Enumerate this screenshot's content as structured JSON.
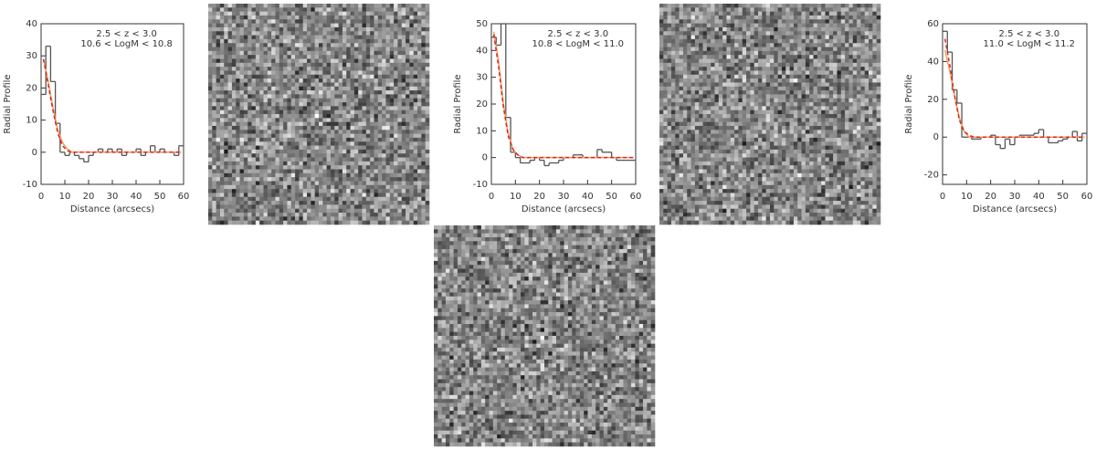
{
  "chart_data": [
    {
      "type": "line",
      "annotations": [
        "2.5 < z <  3.0",
        "10.6 < LogM < 10.8"
      ],
      "xlabel": "Distance (arcsecs)",
      "ylabel": "Radial Profile",
      "xlim": [
        0,
        60
      ],
      "xticks": [
        0,
        10,
        20,
        30,
        40,
        50,
        60
      ],
      "ylim": [
        -10,
        40
      ],
      "yticks": [
        -10,
        0,
        10,
        20,
        30,
        40
      ],
      "x": [
        1,
        3,
        5,
        7,
        9,
        11,
        13,
        15,
        17,
        19,
        21,
        23,
        25,
        27,
        29,
        31,
        33,
        35,
        37,
        39,
        41,
        43,
        45,
        47,
        49,
        51,
        53,
        55,
        57,
        59
      ],
      "series": [
        {
          "color": "#555555",
          "style": "step",
          "values": [
            18,
            33,
            22,
            9,
            0,
            -1,
            0,
            -1,
            -2,
            -3,
            -1,
            0,
            1,
            0,
            1,
            0,
            1,
            -1,
            0,
            0,
            1,
            -1,
            0,
            2,
            0,
            1,
            0,
            0,
            -1,
            2
          ]
        },
        {
          "color": "#f0a060",
          "style": "solid",
          "values": [
            29,
            22,
            14,
            7,
            3,
            1,
            0,
            0,
            0,
            0,
            0,
            0,
            0,
            0,
            0,
            0,
            0,
            0,
            0,
            0,
            0,
            0,
            0,
            0,
            0,
            0,
            0,
            0,
            0,
            0
          ]
        },
        {
          "color": "#dd2222",
          "style": "dashed",
          "values": [
            29,
            21,
            13,
            6,
            2,
            0.5,
            0,
            0,
            0,
            0,
            0,
            0,
            0,
            0,
            0,
            0,
            0,
            0,
            0,
            0,
            0,
            0,
            0,
            0,
            0,
            0,
            0,
            0,
            0,
            0
          ]
        }
      ]
    },
    {
      "type": "line",
      "annotations": [
        "2.5 < z <  3.0",
        "10.8 < LogM < 11.0"
      ],
      "xlabel": "Distance (arcsecs)",
      "ylabel": "Radial Profile",
      "xlim": [
        0,
        60
      ],
      "xticks": [
        0,
        10,
        20,
        30,
        40,
        50,
        60
      ],
      "ylim": [
        -10,
        50
      ],
      "yticks": [
        -10,
        0,
        10,
        20,
        30,
        40,
        50
      ],
      "x": [
        1,
        3,
        5,
        7,
        9,
        11,
        13,
        15,
        17,
        19,
        21,
        23,
        25,
        27,
        29,
        31,
        33,
        35,
        37,
        39,
        41,
        43,
        45,
        47,
        49,
        51,
        53,
        55,
        57,
        59
      ],
      "series": [
        {
          "color": "#555555",
          "style": "step",
          "values": [
            45,
            42,
            50,
            15,
            2,
            0,
            -2,
            -2,
            -1,
            0,
            -1,
            -3,
            -2,
            -2,
            -1,
            0,
            0,
            1,
            1,
            0,
            0,
            0,
            3,
            2,
            2,
            0,
            -1,
            -1,
            -1,
            -1
          ]
        },
        {
          "color": "#f0a060",
          "style": "solid",
          "values": [
            47,
            36,
            20,
            9,
            3,
            1,
            0,
            0,
            0,
            0,
            0,
            0,
            0,
            0,
            0,
            0,
            0,
            0,
            0,
            0,
            0,
            0,
            0,
            0,
            0,
            0,
            0,
            0,
            0,
            0
          ]
        },
        {
          "color": "#dd2222",
          "style": "dashed",
          "values": [
            46,
            34,
            19,
            8,
            3,
            1,
            0,
            0,
            0,
            0,
            0,
            0,
            0,
            0,
            0,
            0,
            0,
            0,
            0,
            0,
            0,
            0,
            0,
            0,
            0,
            0,
            0,
            0,
            0,
            0
          ]
        }
      ]
    },
    {
      "type": "line",
      "annotations": [
        "2.5 < z <  3.0",
        "11.0 < LogM < 11.2"
      ],
      "xlabel": "Distance (arcsecs)",
      "ylabel": "Radial Profile",
      "xlim": [
        0,
        60
      ],
      "xticks": [
        0,
        10,
        20,
        30,
        40,
        50,
        60
      ],
      "ylim": [
        -25,
        60
      ],
      "yticks": [
        -20,
        0,
        20,
        40,
        60
      ],
      "x": [
        1,
        3,
        5,
        7,
        9,
        11,
        13,
        15,
        17,
        19,
        21,
        23,
        25,
        27,
        29,
        31,
        33,
        35,
        37,
        39,
        41,
        43,
        45,
        47,
        49,
        51,
        53,
        55,
        57,
        59
      ],
      "series": [
        {
          "color": "#555555",
          "style": "step",
          "values": [
            56,
            45,
            25,
            18,
            0,
            0,
            -1,
            -1,
            0,
            0,
            1,
            -4,
            -6,
            -1,
            -4,
            0,
            1,
            1,
            1,
            2,
            4,
            0,
            -3,
            -3,
            -2,
            -1,
            0,
            3,
            -2,
            2
          ]
        },
        {
          "color": "#f0a060",
          "style": "solid",
          "values": [
            46,
            35,
            22,
            10,
            3,
            0,
            0,
            0,
            0,
            0,
            0,
            0,
            0,
            0,
            0,
            0,
            0,
            0,
            0,
            0,
            0,
            0,
            0,
            0,
            0,
            0,
            0,
            0,
            0,
            0
          ]
        },
        {
          "color": "#dd2222",
          "style": "dashed",
          "values": [
            52,
            38,
            22,
            9,
            3,
            1,
            0,
            0,
            0,
            0,
            0,
            0,
            0,
            0,
            0,
            0,
            0,
            0,
            0,
            0,
            0,
            0,
            0,
            0,
            0,
            0,
            0,
            0,
            0,
            0
          ]
        }
      ]
    }
  ]
}
